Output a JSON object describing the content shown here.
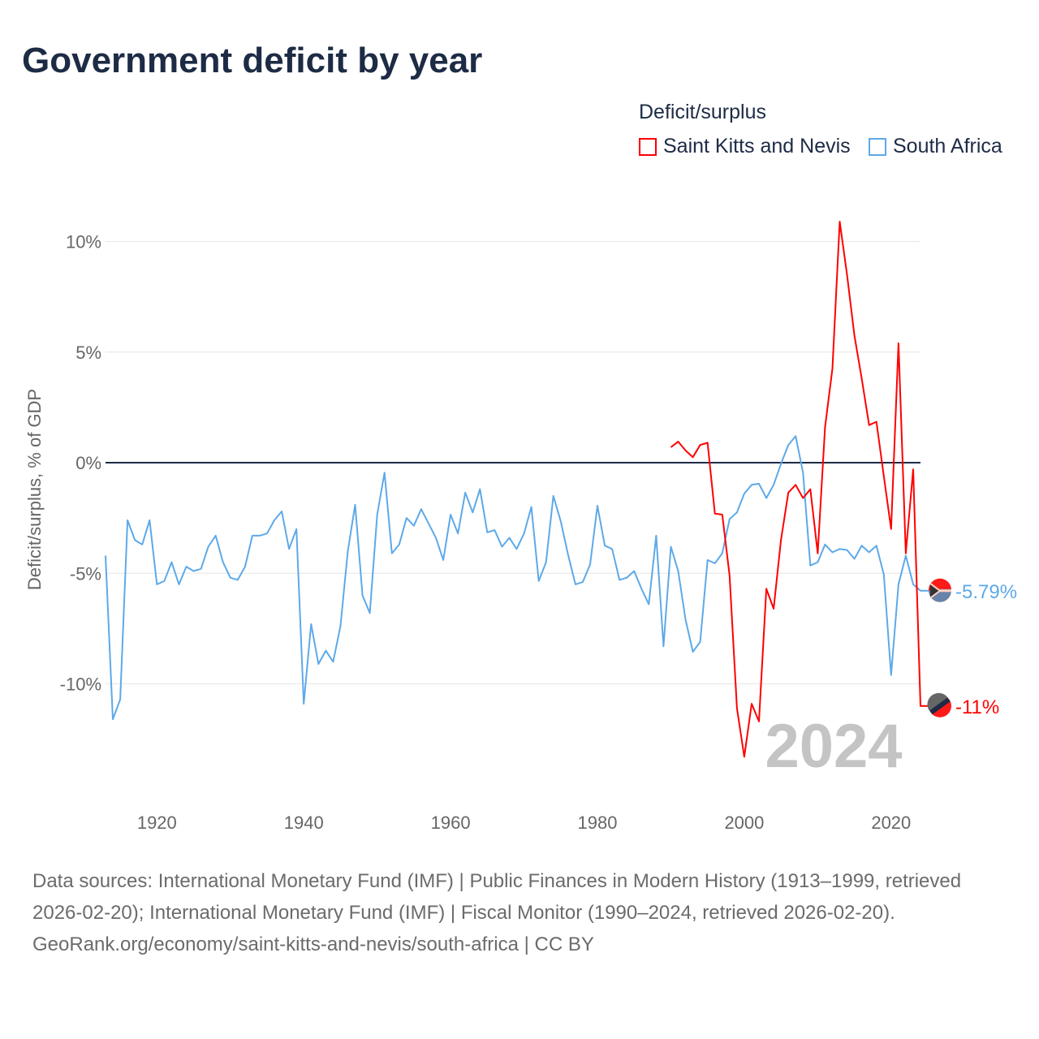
{
  "title": "Government deficit by year",
  "legend": {
    "title": "Deficit/surplus",
    "items": [
      {
        "label": "Saint Kitts and Nevis",
        "color": "#ff0000"
      },
      {
        "label": "South Africa",
        "color": "#5da9e9"
      }
    ]
  },
  "chart_data": {
    "type": "line",
    "title": "Government deficit by year",
    "xlabel": "",
    "ylabel": "Deficit/surplus, % of GDP",
    "xlim": [
      1913,
      2024
    ],
    "ylim": [
      -14,
      11.5
    ],
    "x_ticks": [
      1920,
      1940,
      1960,
      1980,
      2000,
      2020
    ],
    "y_ticks": [
      {
        "v": 10,
        "label": "10%"
      },
      {
        "v": 5,
        "label": "5%"
      },
      {
        "v": 0,
        "label": "0%"
      },
      {
        "v": -5,
        "label": "-5%"
      },
      {
        "v": -10,
        "label": "-10%"
      }
    ],
    "grid": true,
    "legend_position": "top-right",
    "year_annotation": "2024",
    "series": [
      {
        "name": "Saint Kitts and Nevis",
        "color": "#ff0000",
        "start_year": 1990,
        "end_label": "-11%",
        "values": [
          0.7,
          0.95,
          0.55,
          0.25,
          0.8,
          0.9,
          -2.3,
          -2.35,
          -5.1,
          -11.1,
          -13.3,
          -10.9,
          -11.7,
          -5.7,
          -6.6,
          -3.5,
          -1.35,
          -1.0,
          -1.6,
          -1.2,
          -4.1,
          1.6,
          4.25,
          10.9,
          8.5,
          5.75,
          3.8,
          1.7,
          1.85,
          -0.6,
          -3.0,
          5.4,
          -4.1,
          -0.3,
          -11.0
        ]
      },
      {
        "name": "South Africa",
        "color": "#5da9e9",
        "start_year": 1913,
        "end_label": "-5.79%",
        "values": [
          -4.2,
          -11.6,
          -10.7,
          -2.6,
          -3.5,
          -3.7,
          -2.6,
          -5.5,
          -5.35,
          -4.5,
          -5.5,
          -4.7,
          -4.9,
          -4.8,
          -3.8,
          -3.3,
          -4.5,
          -5.2,
          -5.3,
          -4.7,
          -3.3,
          -3.3,
          -3.2,
          -2.6,
          -2.2,
          -3.9,
          -3.0,
          -10.9,
          -7.3,
          -9.1,
          -8.5,
          -9.0,
          -7.4,
          -4.0,
          -1.9,
          -6.0,
          -6.8,
          -2.35,
          -0.45,
          -4.1,
          -3.7,
          -2.5,
          -2.85,
          -2.1,
          -2.75,
          -3.4,
          -4.4,
          -2.35,
          -3.2,
          -1.35,
          -2.25,
          -1.2,
          -3.15,
          -3.05,
          -3.8,
          -3.4,
          -3.9,
          -3.2,
          -2.0,
          -5.35,
          -4.5,
          -1.5,
          -2.65,
          -4.15,
          -5.5,
          -5.4,
          -4.6,
          -1.95,
          -3.75,
          -3.9,
          -5.3,
          -5.2,
          -4.9,
          -5.7,
          -6.4,
          -3.3,
          -8.3,
          -3.8,
          -4.9,
          -7.1,
          -8.55,
          -8.1,
          -4.4,
          -4.55,
          -4.1,
          -2.55,
          -2.25,
          -1.4,
          -1.0,
          -0.95,
          -1.6,
          -1.0,
          -0.05,
          0.8,
          1.2,
          -0.45,
          -4.65,
          -4.5,
          -3.7,
          -4.05,
          -3.9,
          -3.95,
          -4.35,
          -3.75,
          -4.05,
          -3.75,
          -5.05,
          -9.6,
          -5.5,
          -4.2,
          -5.5,
          -5.79
        ]
      }
    ]
  },
  "footer": {
    "sources": "Data sources: International Monetary Fund (IMF) | Public Finances in Modern History (1913–1999, retrieved 2026-02-20); International Monetary Fund (IMF) | Fiscal Monitor (1990–2024, retrieved 2026-02-20).",
    "attribution": "GeoRank.org/economy/saint-kitts-and-nevis/south-africa | CC BY"
  }
}
